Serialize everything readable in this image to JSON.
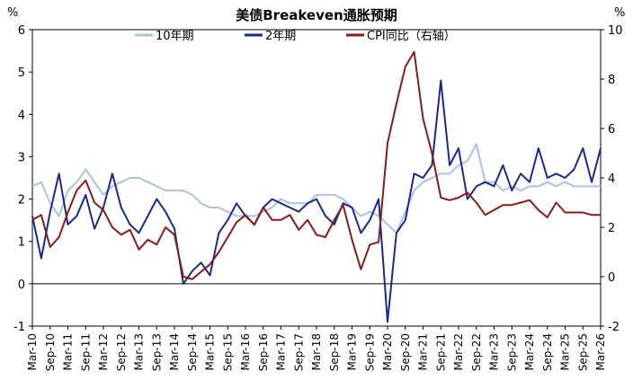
{
  "chart_data": {
    "type": "line",
    "title": "美债Breakeven通胀预期",
    "y_left_label": "%",
    "y_right_label": "%",
    "y_left": {
      "ticks": [
        -1,
        0,
        1,
        2,
        3,
        4,
        5,
        6
      ],
      "min": -1,
      "max": 6
    },
    "y_right": {
      "ticks": [
        -2,
        0,
        2,
        4,
        6,
        8,
        10
      ],
      "min": -2,
      "max": 10
    },
    "x_ticks": [
      "Mar-10",
      "Sep-10",
      "Mar-11",
      "Sep-11",
      "Mar-12",
      "Sep-12",
      "Mar-13",
      "Sep-13",
      "Mar-14",
      "Sep-14",
      "Mar-15",
      "Sep-15",
      "Mar-16",
      "Sep-16",
      "Mar-17",
      "Sep-17",
      "Mar-18",
      "Sep-18",
      "Mar-19",
      "Sep-19",
      "Mar-20",
      "Sep-20",
      "Mar-21",
      "Sep-21",
      "Mar-22",
      "Sep-22",
      "Mar-23",
      "Sep-23",
      "Mar-24",
      "Sep-24",
      "Mar-25",
      "Sep-25",
      "Mar-26"
    ],
    "legend": [
      "10年期",
      "2年期",
      "CPI同比（右轴）"
    ],
    "legend_position": "top",
    "series": [
      {
        "name": "10年期",
        "axis": "left",
        "color": "#a9c2e3",
        "x": [
          0,
          0.5,
          1,
          1.5,
          2,
          2.5,
          3,
          3.5,
          4,
          4.5,
          5,
          5.5,
          6,
          6.5,
          7,
          7.5,
          8,
          8.5,
          9,
          9.5,
          10,
          10.5,
          11,
          11.5,
          12,
          12.5,
          13,
          13.5,
          14,
          14.5,
          15,
          15.5,
          16,
          16.5,
          17,
          17.5,
          18,
          18.5,
          19,
          19.5,
          20,
          20.5,
          21,
          21.5,
          22,
          22.5,
          23,
          23.5,
          24,
          24.5,
          25,
          25.5,
          26,
          26.5,
          27,
          27.5,
          28,
          28.5,
          29,
          29.5,
          30,
          30.5,
          31,
          31.5,
          32
        ],
        "values": [
          2.3,
          2.4,
          1.9,
          1.6,
          2.2,
          2.4,
          2.7,
          2.4,
          2.1,
          2.3,
          2.4,
          2.5,
          2.5,
          2.4,
          2.3,
          2.2,
          2.2,
          2.2,
          2.1,
          1.9,
          1.8,
          1.8,
          1.7,
          1.6,
          1.6,
          1.6,
          1.7,
          1.8,
          2.0,
          1.9,
          1.9,
          1.9,
          2.1,
          2.1,
          2.1,
          2.0,
          1.8,
          1.6,
          1.7,
          1.6,
          1.4,
          1.2,
          1.7,
          2.2,
          2.4,
          2.5,
          2.6,
          2.6,
          2.8,
          2.9,
          3.3,
          2.4,
          2.4,
          2.2,
          2.3,
          2.2,
          2.3,
          2.3,
          2.4,
          2.3,
          2.4,
          2.3,
          2.3,
          2.3,
          2.3
        ]
      },
      {
        "name": "2年期",
        "axis": "left",
        "color": "#1a2a8c",
        "x": [
          0,
          0.5,
          1,
          1.5,
          2,
          2.5,
          3,
          3.5,
          4,
          4.5,
          5,
          5.5,
          6,
          6.5,
          7,
          7.5,
          8,
          8.5,
          9,
          9.5,
          10,
          10.5,
          11,
          11.5,
          12,
          12.5,
          13,
          13.5,
          14,
          14.5,
          15,
          15.5,
          16,
          16.5,
          17,
          17.5,
          18,
          18.5,
          19,
          19.5,
          20,
          20.5,
          21,
          21.5,
          22,
          22.5,
          23,
          23.5,
          24,
          24.5,
          25,
          25.5,
          26,
          26.5,
          27,
          27.5,
          28,
          28.5,
          29,
          29.5,
          30,
          30.5,
          31,
          31.5,
          32
        ],
        "values": [
          1.6,
          0.6,
          1.7,
          2.6,
          1.4,
          1.6,
          2.1,
          1.3,
          1.8,
          2.6,
          1.8,
          1.4,
          1.2,
          1.6,
          2.0,
          1.7,
          1.3,
          0.0,
          0.3,
          0.5,
          0.2,
          1.2,
          1.5,
          1.9,
          1.6,
          1.4,
          1.8,
          2.0,
          1.9,
          1.8,
          1.7,
          1.9,
          2.0,
          1.6,
          1.4,
          1.9,
          1.8,
          1.2,
          1.5,
          2.0,
          -0.9,
          1.2,
          1.5,
          2.6,
          2.5,
          2.8,
          4.8,
          2.8,
          3.2,
          2.0,
          2.3,
          2.4,
          2.3,
          2.8,
          2.2,
          2.6,
          2.4,
          3.2,
          2.5,
          2.6,
          2.5,
          2.7,
          3.2,
          2.4,
          3.2
        ]
      },
      {
        "name": "CPI同比（右轴）",
        "axis": "right",
        "color": "#8b1a1a",
        "x": [
          0,
          0.5,
          1,
          1.5,
          2,
          2.5,
          3,
          3.5,
          4,
          4.5,
          5,
          5.5,
          6,
          6.5,
          7,
          7.5,
          8,
          8.5,
          9,
          9.5,
          10,
          10.5,
          11,
          11.5,
          12,
          12.5,
          13,
          13.5,
          14,
          14.5,
          15,
          15.5,
          16,
          16.5,
          17,
          17.5,
          18,
          18.5,
          19,
          19.5,
          20,
          20.5,
          21,
          21.5,
          22,
          22.5,
          23,
          23.5,
          24,
          24.5,
          25,
          25.5,
          26,
          26.5,
          27,
          27.5,
          28,
          28.5,
          29,
          29.5,
          30,
          30.5,
          31,
          31.5,
          32
        ],
        "values": [
          2.3,
          2.5,
          1.2,
          1.6,
          2.6,
          3.5,
          3.9,
          3.0,
          2.7,
          2.0,
          1.7,
          1.9,
          1.1,
          1.5,
          1.3,
          2.0,
          1.7,
          0.0,
          -0.1,
          0.2,
          0.5,
          1.0,
          1.6,
          2.2,
          2.5,
          2.1,
          2.8,
          2.3,
          2.3,
          2.5,
          1.9,
          2.3,
          1.7,
          1.6,
          2.3,
          2.9,
          1.5,
          0.3,
          1.3,
          1.4,
          5.4,
          7.0,
          8.5,
          9.1,
          6.4,
          5.0,
          3.2,
          3.1,
          3.2,
          3.4,
          3.0,
          2.5,
          2.7,
          2.9,
          2.9,
          3.0,
          3.1,
          2.7,
          2.4,
          3.0,
          2.6,
          2.6,
          2.6,
          2.5,
          2.5
        ]
      }
    ]
  }
}
